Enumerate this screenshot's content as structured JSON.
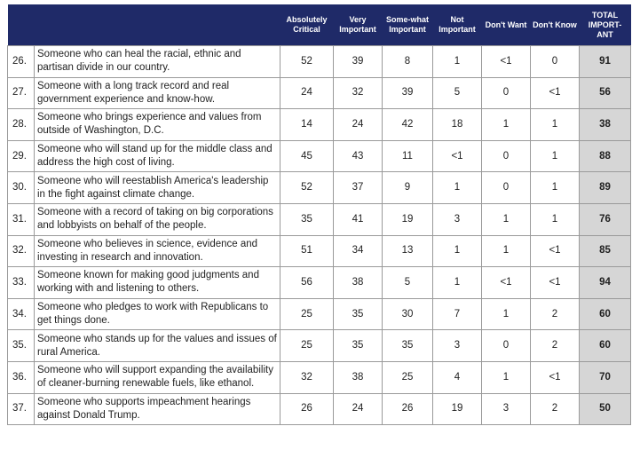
{
  "table": {
    "columns": [
      "Absolutely Critical",
      "Very Important",
      "Some-what Important",
      "Not Important",
      "Don't Want",
      "Don't Know",
      "TOTAL IMPORT-ANT"
    ],
    "rows": [
      {
        "number": "26.",
        "text": "Someone who can heal the racial, ethnic and partisan divide in our country.",
        "cells": [
          52,
          39,
          8,
          1,
          "<1",
          0,
          91
        ]
      },
      {
        "number": "27.",
        "text": "Someone with a long track record and real government experience and know-how.",
        "cells": [
          24,
          32,
          39,
          5,
          0,
          "<1",
          56
        ]
      },
      {
        "number": "28.",
        "text": "Someone who brings experience and values from outside of Washington, D.C.",
        "cells": [
          14,
          24,
          42,
          18,
          1,
          1,
          38
        ]
      },
      {
        "number": "29.",
        "text": "Someone who will stand up for the middle class and address the high cost of living.",
        "cells": [
          45,
          43,
          11,
          "<1",
          0,
          1,
          88
        ]
      },
      {
        "number": "30.",
        "text": "Someone who will reestablish America's leadership in the fight against climate change.",
        "cells": [
          52,
          37,
          9,
          1,
          0,
          1,
          89
        ]
      },
      {
        "number": "31.",
        "text": "Someone with a record of taking on big corporations and lobbyists on behalf of the people.",
        "cells": [
          35,
          41,
          19,
          3,
          1,
          1,
          76
        ]
      },
      {
        "number": "32.",
        "text": "Someone who believes in science, evidence and investing in research and innovation.",
        "cells": [
          51,
          34,
          13,
          1,
          1,
          "<1",
          85
        ]
      },
      {
        "number": "33.",
        "text": "Someone known for making good judgments and working with and listening to others.",
        "cells": [
          56,
          38,
          5,
          1,
          "<1",
          "<1",
          94
        ]
      },
      {
        "number": "34.",
        "text": "Someone who pledges to work with Republicans to get things done.",
        "cells": [
          25,
          35,
          30,
          7,
          1,
          2,
          60
        ]
      },
      {
        "number": "35.",
        "text": "Someone who stands up for the values and issues of rural America.",
        "cells": [
          25,
          35,
          35,
          3,
          0,
          2,
          60
        ]
      },
      {
        "number": "36.",
        "text": "Someone who will support expanding the availability of cleaner-burning renewable fuels, like ethanol.",
        "cells": [
          32,
          38,
          25,
          4,
          1,
          "<1",
          70
        ]
      },
      {
        "number": "37.",
        "text": "Someone who supports impeachment hearings against Donald Trump.",
        "cells": [
          26,
          24,
          26,
          19,
          3,
          2,
          50
        ]
      }
    ]
  }
}
